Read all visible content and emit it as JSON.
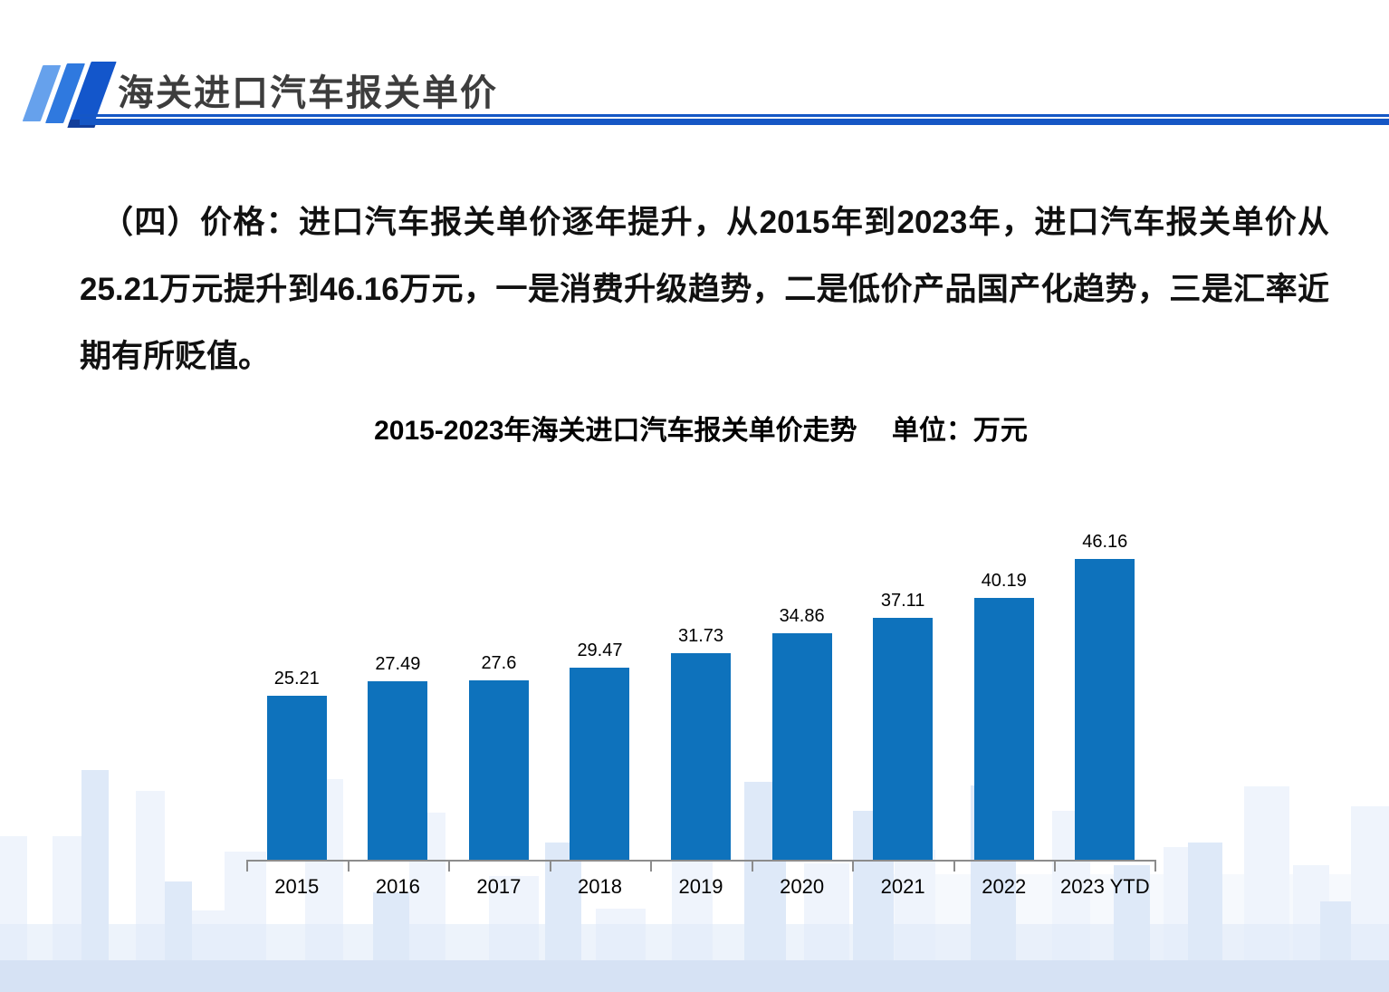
{
  "header": {
    "title": "海关进口汽车报关单价"
  },
  "body": {
    "paragraph": "（四）价格：进口汽车报关单价逐年提升，从2015年到2023年，进口汽车报关单价从25.21万元提升到46.16万元，一是消费升级趋势，二是低价产品国产化趋势，三是汇率近期有所贬值。"
  },
  "chart_data": {
    "type": "bar",
    "title": "2015-2023年海关进口汽车报关单价走势",
    "unit_label": "单位：万元",
    "categories": [
      "2015",
      "2016",
      "2017",
      "2018",
      "2019",
      "2020",
      "2021",
      "2022",
      "2023 YTD"
    ],
    "values": [
      25.21,
      27.49,
      27.6,
      29.47,
      31.73,
      34.86,
      37.11,
      40.19,
      46.16
    ],
    "value_labels": [
      "25.21",
      "27.49",
      "27.6",
      "29.47",
      "31.73",
      "34.86",
      "37.11",
      "40.19",
      "46.16"
    ],
    "xlabel": "",
    "ylabel": "万元",
    "ylim": [
      0,
      50
    ],
    "grid": false,
    "legend": "none",
    "bar_color": "#0E72BC",
    "axis_color": "#8C8C8C"
  },
  "theme": {
    "rule_color": "#1557C5",
    "title_color": "#3D3D3D",
    "logo_colors": [
      "#66A1EC",
      "#2F79DF",
      "#1356CB",
      "#123E9A"
    ]
  }
}
